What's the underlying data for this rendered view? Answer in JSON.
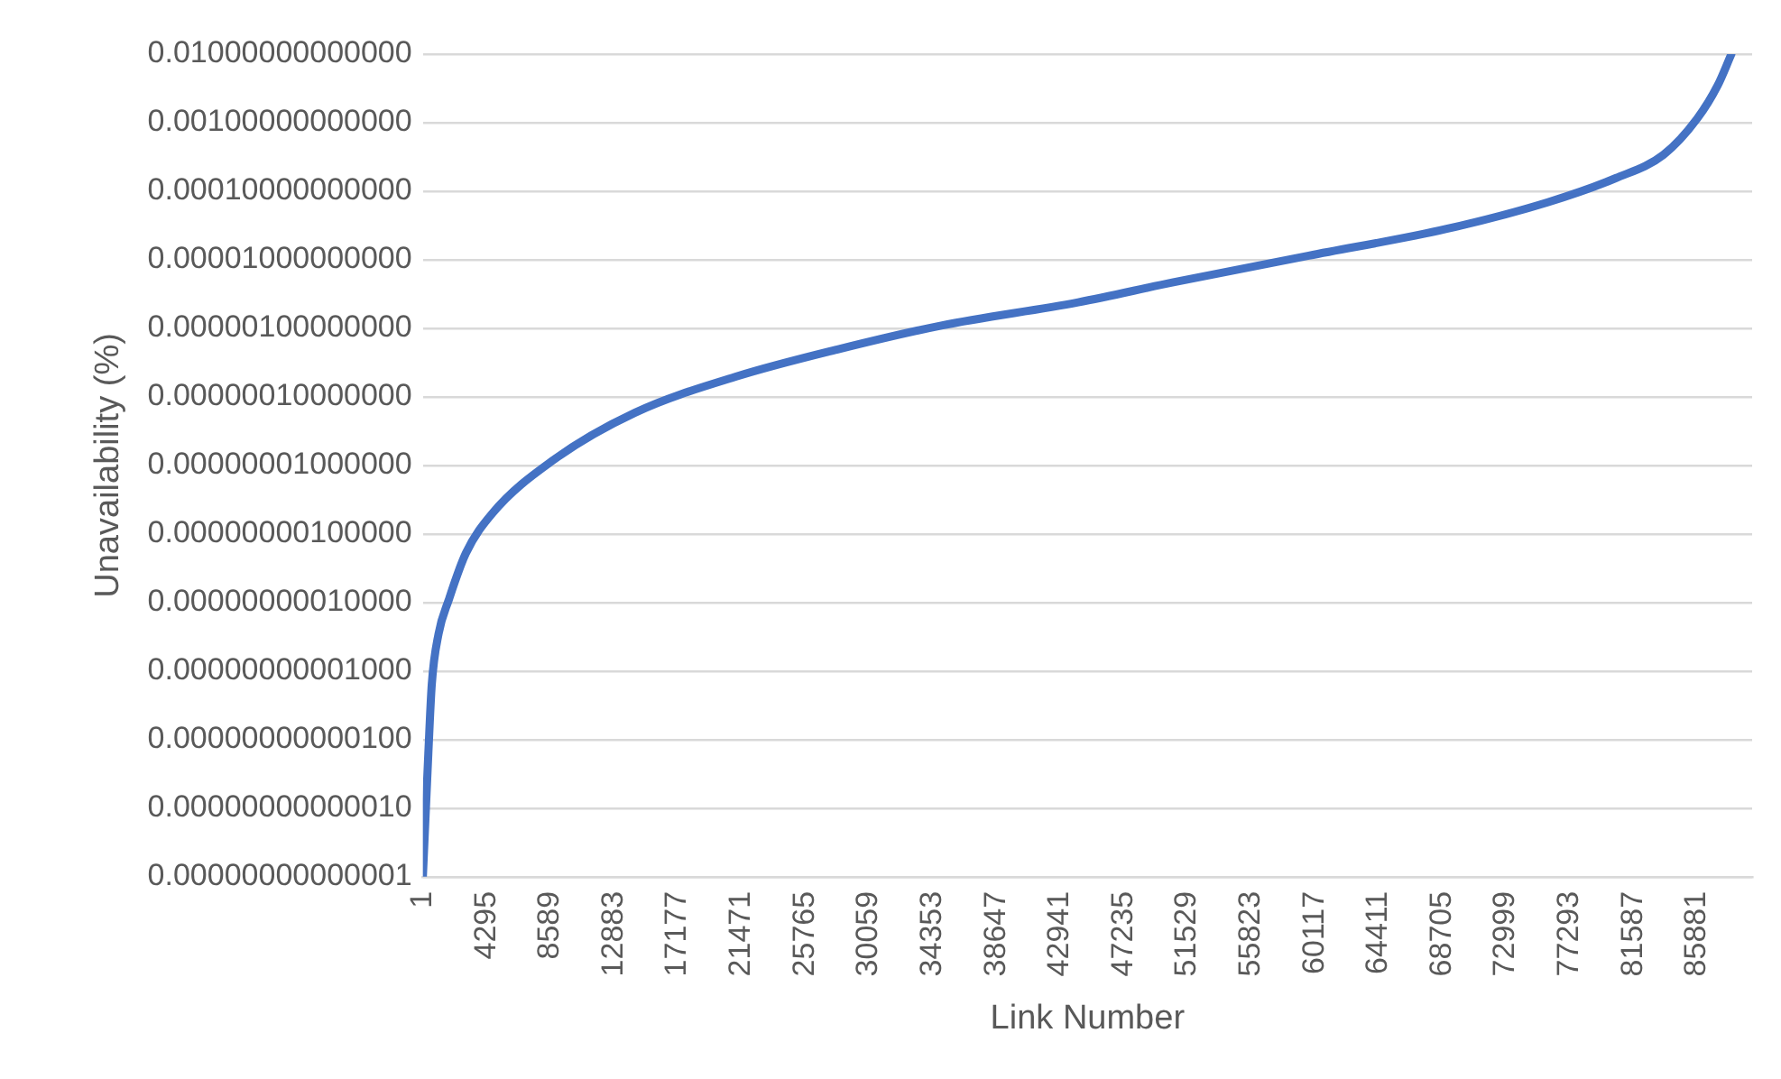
{
  "chart_data": {
    "type": "line",
    "xlabel": "Link Number",
    "ylabel": "Unavailability (%)",
    "log": "y",
    "grid": "y",
    "marker": "none",
    "line_style": "solid",
    "x": [
      1,
      370,
      600,
      1060,
      1750,
      2890,
      4680,
      8800,
      14310,
      21190,
      28070,
      34950,
      44170,
      50590,
      59720,
      68940,
      75820,
      80400,
      83620,
      85900,
      87280,
      88200
    ],
    "series": [
      {
        "color": "#4472c4",
        "values": [
          1e-14,
          6.3e-13,
          6.3e-12,
          3.5e-11,
          1.1e-10,
          5.2e-10,
          2e-09,
          1.2e-08,
          5.9e-08,
          2e-07,
          5e-07,
          1.1e-06,
          2.4e-06,
          4.7e-06,
          1.15e-05,
          2.8e-05,
          6.9e-05,
          0.000155,
          0.00034,
          0.00115,
          0.0035,
          0.01
        ]
      }
    ],
    "xlim": [
      1,
      89600
    ],
    "xticks": [
      1,
      4295,
      8589,
      12883,
      17177,
      21471,
      25765,
      30059,
      34353,
      38647,
      42941,
      47235,
      51529,
      55823,
      60117,
      64411,
      68705,
      72999,
      77293,
      81587,
      85881
    ],
    "ylim": [
      1e-14,
      0.01
    ],
    "yticks": [
      {
        "value": 1e-14,
        "label": "0.00000000000001"
      },
      {
        "value": 1e-13,
        "label": "0.00000000000010"
      },
      {
        "value": 1e-12,
        "label": "0.00000000000100"
      },
      {
        "value": 1e-11,
        "label": "0.00000000001000"
      },
      {
        "value": 1e-10,
        "label": "0.00000000010000"
      },
      {
        "value": 1e-09,
        "label": "0.00000000100000"
      },
      {
        "value": 1e-08,
        "label": "0.00000001000000"
      },
      {
        "value": 1e-07,
        "label": "0.00000010000000"
      },
      {
        "value": 1e-06,
        "label": "0.00000100000000"
      },
      {
        "value": 1e-05,
        "label": "0.00001000000000"
      },
      {
        "value": 0.0001,
        "label": "0.00010000000000"
      },
      {
        "value": 0.001,
        "label": "0.00100000000000"
      },
      {
        "value": 0.01,
        "label": "0.01000000000000"
      }
    ]
  }
}
